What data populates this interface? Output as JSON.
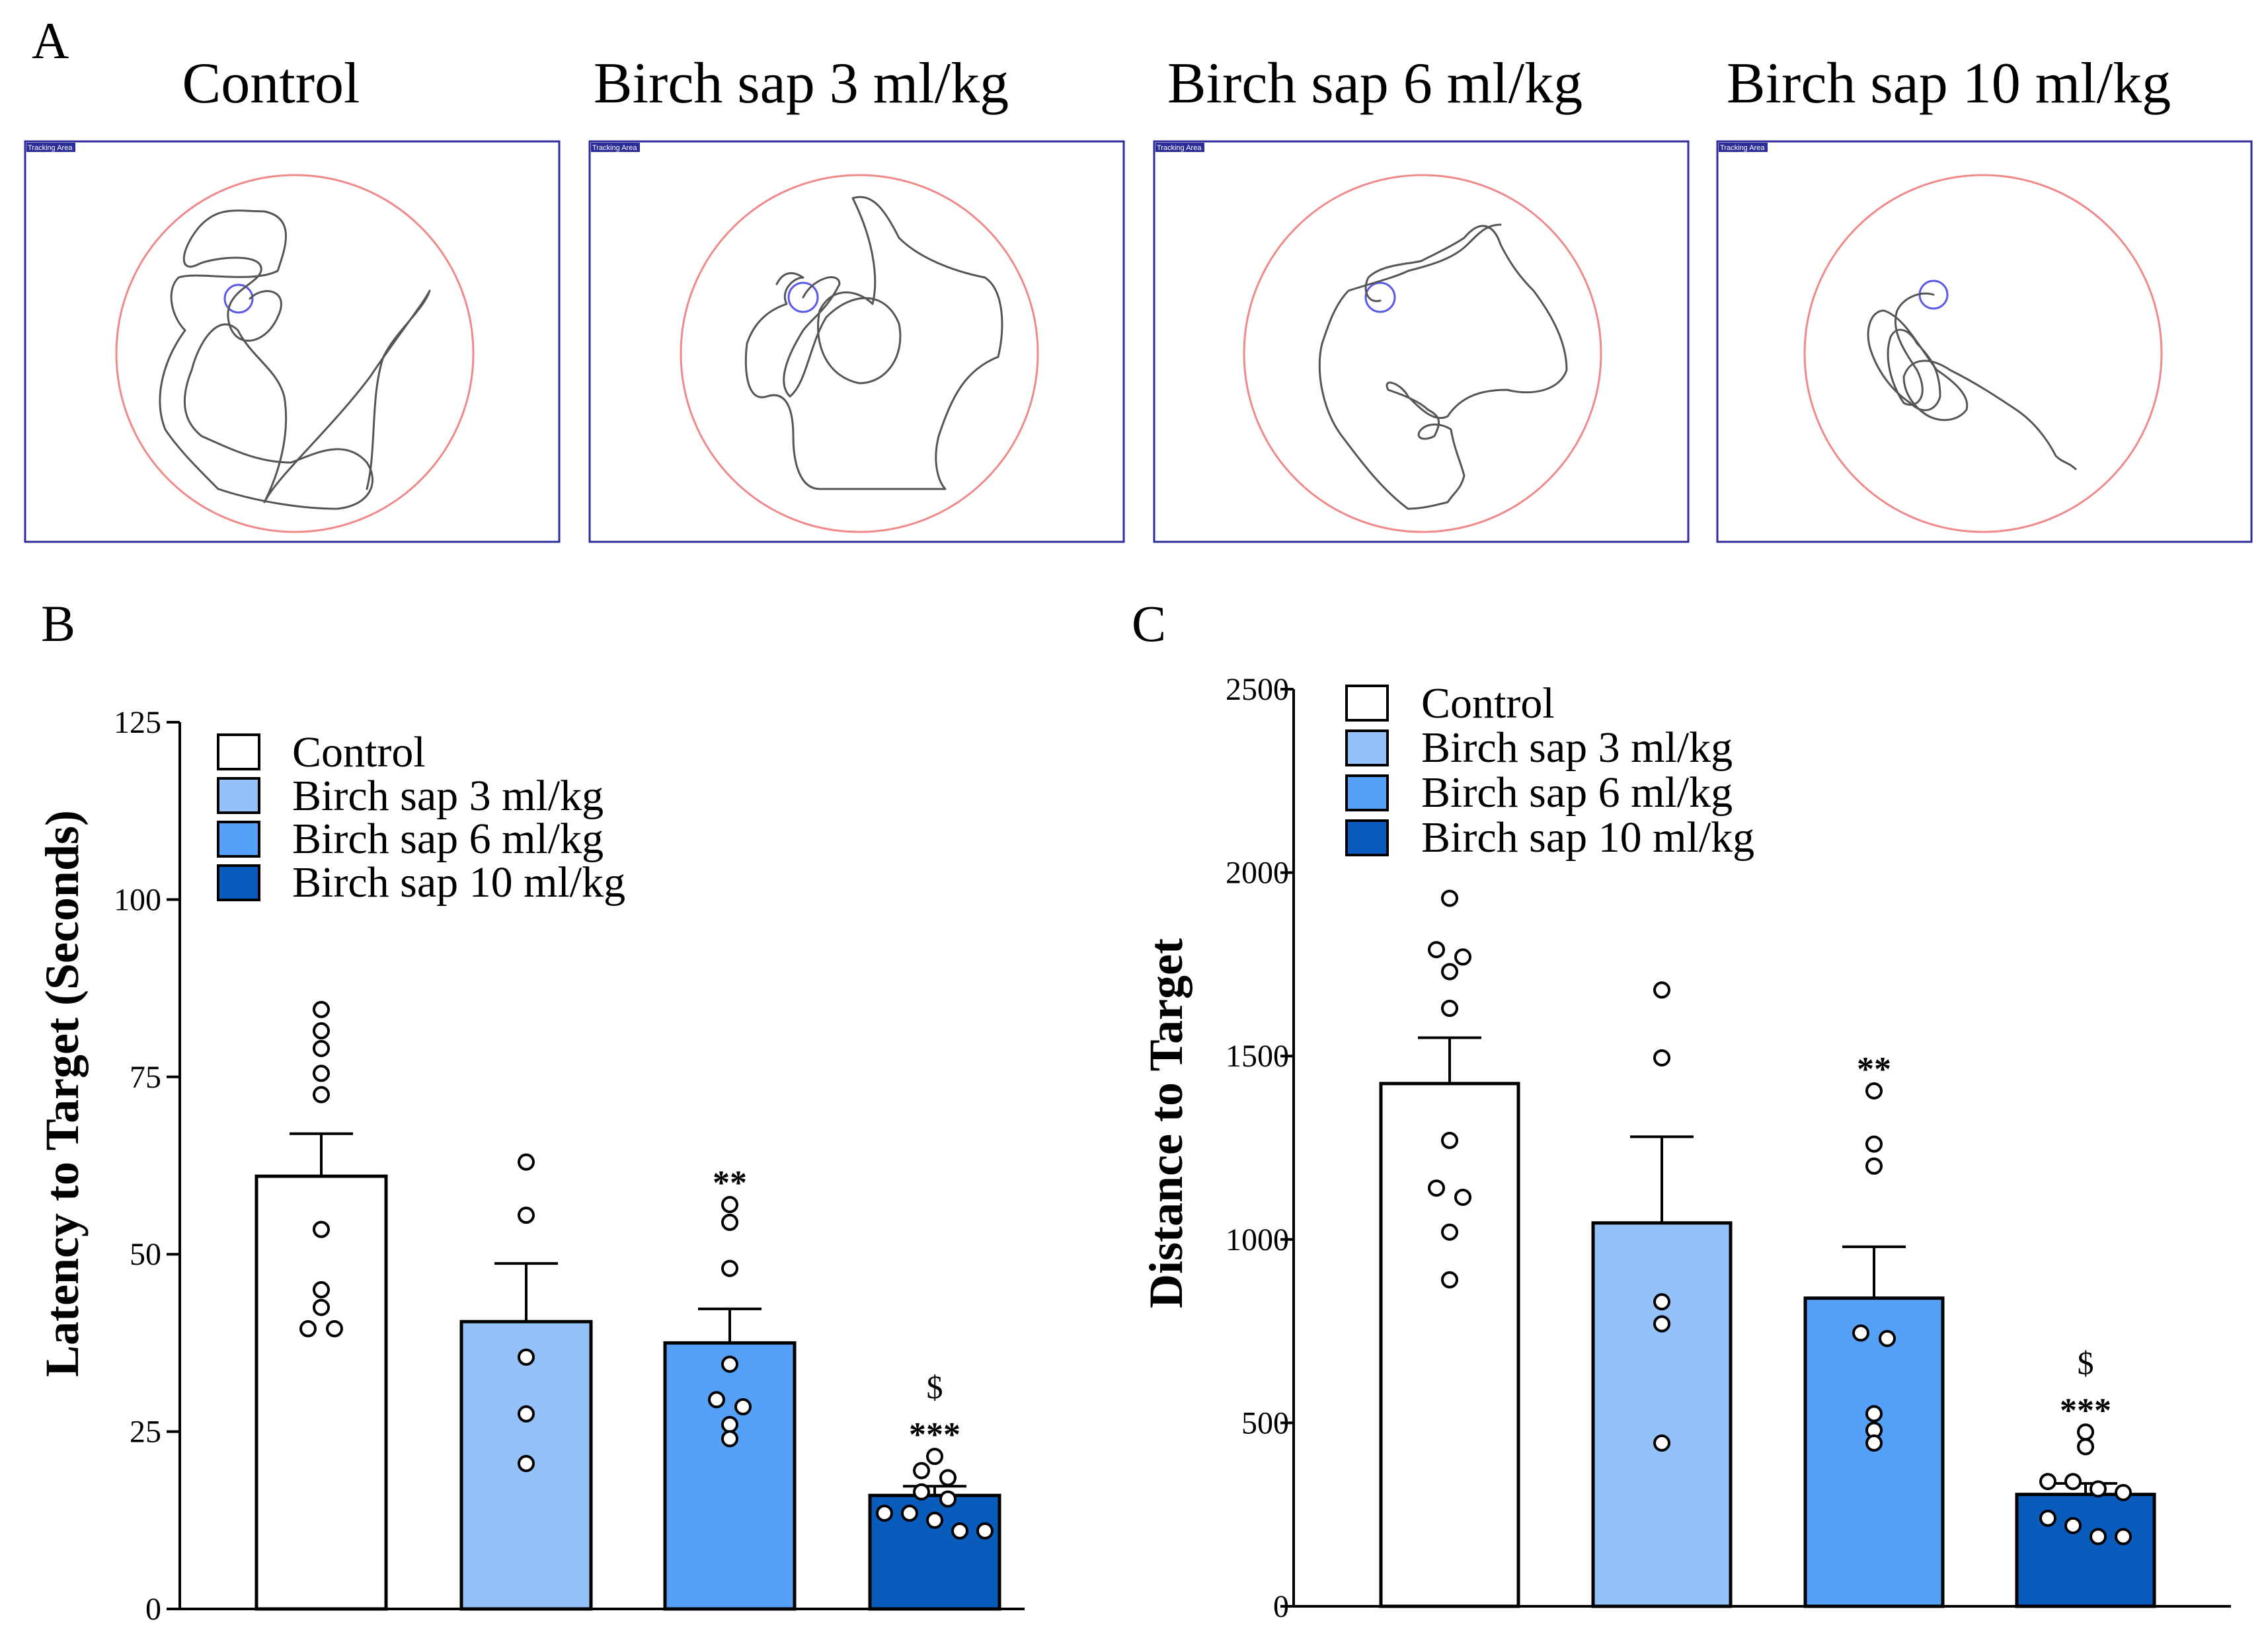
{
  "panels": {
    "A": {
      "letter": "A"
    },
    "B": {
      "letter": "B"
    },
    "C": {
      "letter": "C"
    }
  },
  "tracks": {
    "titles": [
      "Control",
      "Birch sap 3 ml/kg",
      "Birch sap 6 ml/kg",
      "Birch sap 10 ml/kg"
    ],
    "tag": "Tracking Area",
    "colors": {
      "frame": "#2b2b9a",
      "pool": "#f08a8a",
      "platform": "#5a5ae6",
      "path": "#555555"
    }
  },
  "chart_data": [
    {
      "id": "B",
      "type": "bar",
      "ylabel": "Latency to Target (Seconds)",
      "xlabel": "",
      "ylim": [
        0,
        125
      ],
      "yticks": [
        0,
        25,
        50,
        75,
        100,
        125
      ],
      "categories": [
        "Control",
        "Birch sap 3 ml/kg",
        "Birch sap 6 ml/kg",
        "Birch sap 10 ml/kg"
      ],
      "values": [
        61,
        40.5,
        37.5,
        16
      ],
      "errors": [
        6,
        8.2,
        4.8,
        1.3
      ],
      "points": [
        [
          84.5,
          81.5,
          79,
          75.5,
          72.5,
          53.5,
          45,
          42.5,
          39.5,
          39.5
        ],
        [
          63,
          55.5,
          35.5,
          27.5,
          20.5
        ],
        [
          57,
          54.5,
          48,
          34.5,
          29.5,
          28.5,
          26,
          24
        ],
        [
          21.5,
          19.5,
          18.5,
          16.5,
          15.5,
          13.5,
          13.5,
          12.5,
          11,
          11
        ]
      ],
      "significance": [
        "",
        "",
        "**",
        "***"
      ],
      "second_marker": [
        "",
        "",
        "",
        "$"
      ],
      "legend": [
        "Control",
        "Birch sap 3 ml/kg",
        "Birch sap 6 ml/kg",
        "Birch sap 10 ml/kg"
      ],
      "colors": [
        "#ffffff",
        "#93c1f8",
        "#56a1f8",
        "#0a5cbc"
      ]
    },
    {
      "id": "C",
      "type": "bar",
      "ylabel": "Distance to Target",
      "xlabel": "",
      "ylim": [
        0,
        2500
      ],
      "yticks": [
        0,
        500,
        1000,
        1500,
        2000,
        2500
      ],
      "categories": [
        "Control",
        "Birch sap 3 ml/kg",
        "Birch sap 6 ml/kg",
        "Birch sap 10 ml/kg"
      ],
      "values": [
        1425,
        1045,
        840,
        305
      ],
      "errors": [
        125,
        235,
        140,
        30
      ],
      "points": [
        [
          1930,
          1790,
          1770,
          1730,
          1630,
          1270,
          1140,
          1115,
          1020,
          890
        ],
        [
          1680,
          1495,
          830,
          770,
          445
        ],
        [
          1405,
          1260,
          1200,
          745,
          730,
          525,
          480,
          445
        ],
        [
          475,
          435,
          340,
          340,
          320,
          310,
          240,
          220,
          190,
          190
        ]
      ],
      "significance": [
        "",
        "",
        "**",
        "***"
      ],
      "second_marker": [
        "",
        "",
        "",
        "$"
      ],
      "legend": [
        "Control",
        "Birch sap 3 ml/kg",
        "Birch sap 6 ml/kg",
        "Birch sap 10 ml/kg"
      ],
      "colors": [
        "#ffffff",
        "#93c1f8",
        "#56a1f8",
        "#0a5cbc"
      ]
    }
  ]
}
